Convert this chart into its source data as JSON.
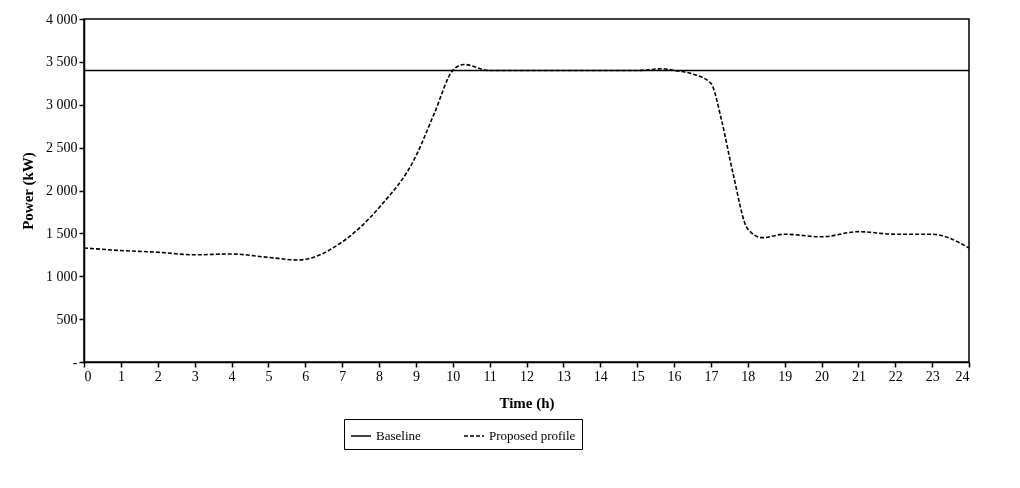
{
  "chart_data": {
    "type": "line",
    "xlabel": "Time (h)",
    "ylabel": "Power (kW)",
    "xlim": [
      0,
      24
    ],
    "xticks": [
      0,
      1,
      2,
      3,
      4,
      5,
      6,
      7,
      8,
      9,
      10,
      11,
      12,
      13,
      14,
      15,
      16,
      17,
      18,
      19,
      20,
      21,
      22,
      23,
      24
    ],
    "ylim": [
      0,
      4000
    ],
    "yticks": [
      {
        "value": 0,
        "label": "-"
      },
      {
        "value": 500,
        "label": "500"
      },
      {
        "value": 1000,
        "label": "1 000"
      },
      {
        "value": 1500,
        "label": "1 500"
      },
      {
        "value": 2000,
        "label": "2 000"
      },
      {
        "value": 2500,
        "label": "2 500"
      },
      {
        "value": 3000,
        "label": "3 000"
      },
      {
        "value": 3500,
        "label": "3 500"
      },
      {
        "value": 4000,
        "label": "4 000"
      }
    ],
    "grid": false,
    "legend": "bottom",
    "marker": "none",
    "series": [
      {
        "name": "Baseline",
        "color": "#000000",
        "line_style": "solid",
        "x": [
          0,
          24
        ],
        "values": [
          3400,
          3400
        ]
      },
      {
        "name": "Proposed profile",
        "color": "#000000",
        "line_style": "dashed",
        "x": [
          0,
          1,
          2,
          3,
          4,
          5,
          5.8,
          7,
          8,
          9,
          9.5,
          10,
          10.3,
          11,
          12,
          13,
          14,
          15,
          15.7,
          16,
          16.5,
          17,
          17.3,
          17.6,
          18,
          18.4,
          19,
          20,
          21,
          22,
          23,
          24
        ],
        "values": [
          1330,
          1300,
          1280,
          1250,
          1260,
          1220,
          1190,
          1400,
          1800,
          2400,
          2900,
          3400,
          3470,
          3400,
          3400,
          3400,
          3400,
          3400,
          3420,
          3400,
          3360,
          3250,
          2800,
          2200,
          1550,
          1450,
          1490,
          1460,
          1520,
          1490,
          1490,
          1330
        ]
      }
    ]
  }
}
